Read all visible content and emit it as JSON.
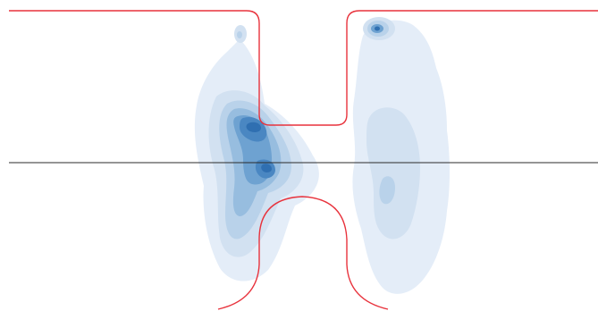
{
  "diagram": {
    "kind": "density-contour-overlay",
    "colors": {
      "background": "#ffffff",
      "outline": "#e8323c",
      "midline": "#2b2b2b",
      "density_levels": [
        "#e4edf8",
        "#d2e1f1",
        "#b9d2ea",
        "#97bddf",
        "#6ea2d1",
        "#4a87c2",
        "#2f6fb1"
      ]
    },
    "regions": [
      {
        "name": "upper-channel",
        "shape": "t-shaped"
      },
      {
        "name": "lower-channel",
        "shape": "arch"
      }
    ],
    "density_clusters": [
      {
        "name": "left-cluster",
        "levels": 7
      },
      {
        "name": "right-cluster",
        "levels": 4
      },
      {
        "name": "top-right-hotspot",
        "levels": 4
      },
      {
        "name": "top-left-speck",
        "levels": 2
      }
    ]
  }
}
